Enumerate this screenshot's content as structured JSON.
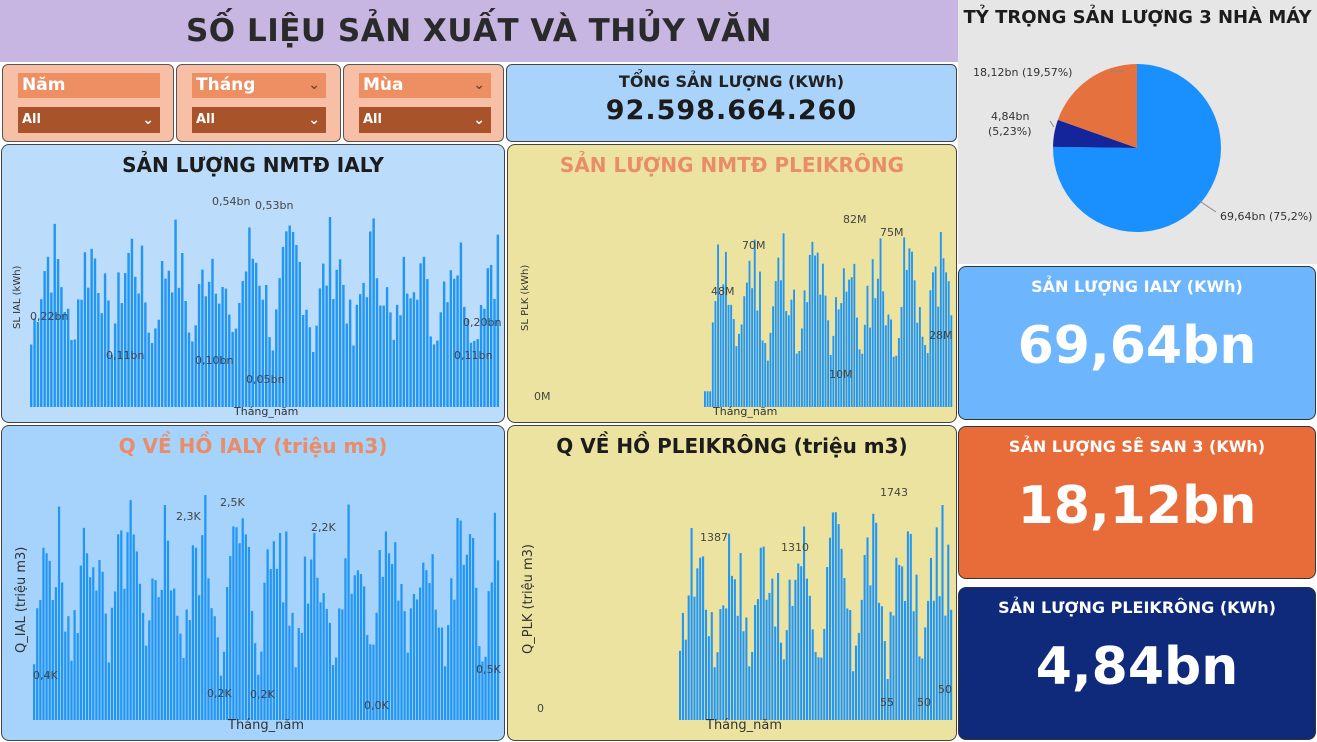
{
  "header": {
    "title": "SỐ LIỆU SẢN XUẤT VÀ THỦY VĂN"
  },
  "slicers": [
    {
      "label": "Năm",
      "value": "All"
    },
    {
      "label": "Tháng",
      "value": "All"
    },
    {
      "label": "Mùa",
      "value": "All"
    }
  ],
  "total": {
    "label": "TỔNG SẢN LƯỢNG (KWh)",
    "value": "92.598.664.260"
  },
  "cards": {
    "ialy": {
      "label": "SẢN LƯỢNG IALY (KWh)",
      "value": "69,64bn"
    },
    "sesan": {
      "label": "SẢN LƯỢNG SÊ SAN 3 (KWh)",
      "value": "18,12bn"
    },
    "pleikrong": {
      "label": "SẢN LƯỢNG PLEIKRÔNG (KWh)",
      "value": "4,84bn"
    }
  },
  "colors": {
    "blue": "#2196f3",
    "orange": "#e86c3a",
    "navy": "#0f2a7a",
    "pie_blue": "#1a90ff",
    "pie_navy": "#14249a",
    "pie_orange": "#e5713e"
  },
  "chart_data": [
    {
      "type": "bar",
      "title": "SẢN LƯỢNG NMTĐ IALY",
      "xlabel": "Tháng_năm",
      "ylabel": "SL IAL (kWh)",
      "labels": [
        "0,22bn",
        "0,11bn",
        "0,54bn",
        "0,10bn",
        "0,05bn",
        "0,53bn",
        "0,20bn",
        "0,11bn"
      ],
      "note": "~120 monthly bars; peaks around 0.5bn kWh"
    },
    {
      "type": "bar",
      "title": "SẢN LƯỢNG NMTĐ PLEIKRÔNG",
      "xlabel": "Tháng_năm",
      "ylabel": "SL PLK (kWh)",
      "labels": [
        "0M",
        "48M",
        "70M",
        "82M",
        "75M",
        "10M",
        "28M"
      ],
      "note": "~55 monthly bars in the second half of the period"
    },
    {
      "type": "bar",
      "title": "Q VỀ HỒ IALY (triệu m3)",
      "xlabel": "Tháng_năm",
      "ylabel": "Q_IAL (triệu m3)",
      "labels": [
        "0,4K",
        "2,3K",
        "2,5K",
        "0,2K",
        "0,2K",
        "2,2K",
        "0,0K",
        "0,5K"
      ],
      "note": "~120 monthly bars; peaks around 2.5K"
    },
    {
      "type": "bar",
      "title": "Q VỀ HỒ PLEIKRÔNG (triệu m3)",
      "xlabel": "Tháng_năm",
      "ylabel": "Q_PLK (triệu m3)",
      "labels": [
        "0",
        "1387",
        "1310",
        "1743",
        "55",
        "50",
        "50"
      ],
      "note": "~90 monthly bars"
    },
    {
      "type": "pie",
      "title": "TỶ TRỌNG SẢN LƯỢNG 3 NHÀ MÁY",
      "slices": [
        {
          "label": "69,64bn (75,2%)",
          "value": 69.64,
          "color": "#1a90ff"
        },
        {
          "label": "4,84bn (5,23%)",
          "value": 4.84,
          "color": "#14249a"
        },
        {
          "label": "18,12bn (19,57%)",
          "value": 18.12,
          "color": "#e5713e"
        }
      ]
    }
  ]
}
